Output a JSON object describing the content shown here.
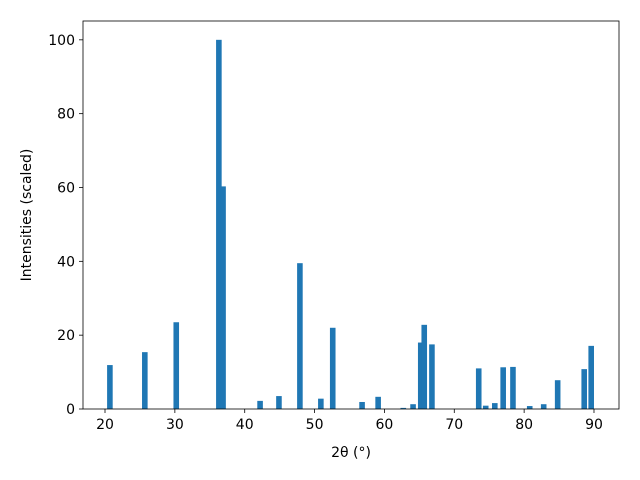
{
  "chart_data": {
    "type": "bar",
    "x_label": "2θ (°)",
    "y_label": "Intensities (scaled)",
    "x": [
      20.7,
      25.7,
      30.2,
      36.3,
      36.9,
      42.2,
      44.9,
      47.9,
      50.9,
      52.6,
      56.8,
      59.1,
      62.7,
      64.1,
      65.2,
      65.7,
      66.8,
      73.5,
      74.5,
      75.8,
      77.0,
      78.4,
      80.8,
      82.8,
      84.8,
      88.6,
      89.6
    ],
    "values": [
      11.9,
      15.4,
      23.5,
      100,
      60.3,
      2.2,
      3.5,
      39.5,
      2.8,
      22,
      1.9,
      3.3,
      0.3,
      1.3,
      18,
      22.8,
      17.5,
      11,
      0.9,
      1.6,
      11.3,
      11.4,
      0.8,
      1.3,
      7.8,
      10.8,
      17.1
    ],
    "color": "#1f77b4",
    "xlim": [
      16.85,
      93.58
    ],
    "ylim": [
      0,
      105.1
    ],
    "xticks": [
      20,
      30,
      40,
      50,
      60,
      70,
      80,
      90
    ],
    "yticks": [
      0,
      20,
      40,
      60,
      80,
      100
    ],
    "grid": false
  }
}
